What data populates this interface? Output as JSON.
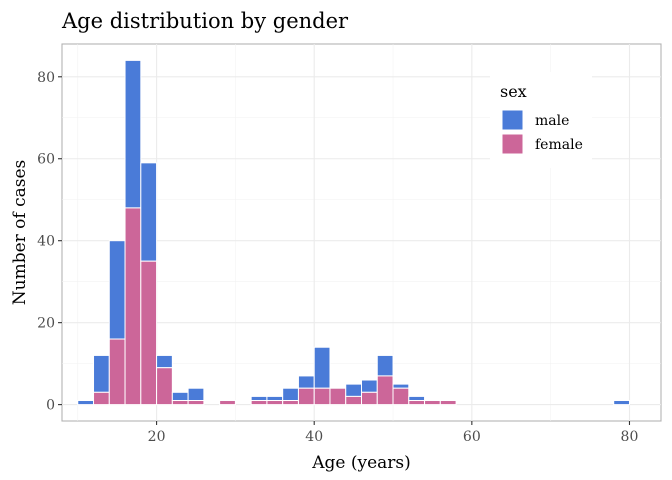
{
  "chart_data": {
    "type": "bar",
    "stacked": true,
    "title": "Age distribution by gender",
    "xlabel": "Age (years)",
    "ylabel": "Number of cases",
    "xlim": [
      8,
      84
    ],
    "ylim": [
      -4,
      88
    ],
    "x_ticks": [
      20,
      40,
      60,
      80
    ],
    "y_ticks": [
      0,
      20,
      40,
      60,
      80
    ],
    "grid": true,
    "legend_title": "sex",
    "legend_position": "top-right",
    "bin_width": 2,
    "x": [
      11,
      13,
      15,
      17,
      19,
      21,
      23,
      25,
      27,
      29,
      31,
      33,
      35,
      37,
      39,
      41,
      43,
      45,
      47,
      49,
      51,
      53,
      55,
      57,
      59,
      61,
      63,
      65,
      67,
      69,
      71,
      73,
      75,
      77,
      79,
      81
    ],
    "series": [
      {
        "name": "female",
        "color": "#cc6699",
        "values": [
          0,
          3,
          16,
          48,
          35,
          9,
          1,
          1,
          0,
          1,
          0,
          1,
          1,
          1,
          4,
          4,
          4,
          2,
          3,
          7,
          4,
          1,
          1,
          1,
          0,
          0,
          0,
          0,
          0,
          0,
          0,
          0,
          0,
          0,
          0,
          0
        ]
      },
      {
        "name": "male",
        "color": "#4a7bd8",
        "values": [
          1,
          9,
          24,
          36,
          24,
          3,
          2,
          3,
          0,
          0,
          0,
          1,
          1,
          3,
          3,
          10,
          0,
          3,
          3,
          5,
          1,
          1,
          0,
          0,
          0,
          0,
          0,
          0,
          0,
          0,
          0,
          0,
          0,
          0,
          1,
          0
        ]
      }
    ]
  }
}
